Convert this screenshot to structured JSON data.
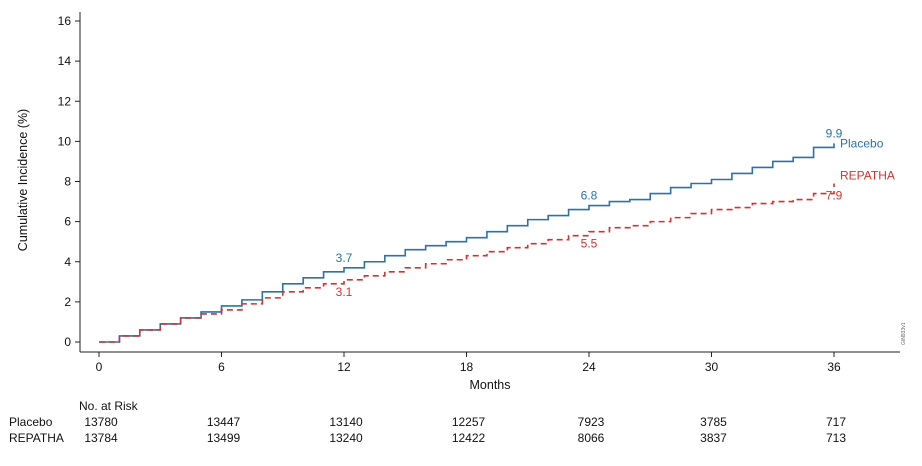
{
  "chart_data": {
    "type": "line",
    "title": "",
    "xlabel": "Months",
    "ylabel": "Cumulative Incidence (%)",
    "xlim": [
      0,
      38.5
    ],
    "ylim": [
      0,
      16
    ],
    "xticks": [
      0,
      6,
      12,
      18,
      24,
      30,
      36
    ],
    "yticks": [
      0,
      2,
      4,
      6,
      8,
      10,
      12,
      14,
      16
    ],
    "series": [
      {
        "name": "Placebo",
        "color": "#2a72a8",
        "style": "solid",
        "x": [
          0,
          1,
          2,
          3,
          4,
          5,
          6,
          7,
          8,
          9,
          10,
          11,
          12,
          13,
          14,
          15,
          16,
          17,
          18,
          19,
          20,
          21,
          22,
          23,
          24,
          25,
          26,
          27,
          28,
          29,
          30,
          31,
          32,
          33,
          34,
          35,
          36
        ],
        "values": [
          0,
          0.3,
          0.6,
          0.9,
          1.2,
          1.5,
          1.8,
          2.1,
          2.5,
          2.9,
          3.2,
          3.5,
          3.7,
          4.0,
          4.3,
          4.6,
          4.8,
          5.0,
          5.2,
          5.5,
          5.8,
          6.1,
          6.3,
          6.6,
          6.8,
          7.0,
          7.1,
          7.4,
          7.7,
          7.9,
          8.1,
          8.4,
          8.7,
          9.0,
          9.2,
          9.7,
          9.9
        ]
      },
      {
        "name": "REPATHA",
        "color": "#d6312f",
        "style": "dashed",
        "x": [
          0,
          1,
          2,
          3,
          4,
          5,
          6,
          7,
          8,
          9,
          10,
          11,
          12,
          13,
          14,
          15,
          16,
          17,
          18,
          19,
          20,
          21,
          22,
          23,
          24,
          25,
          26,
          27,
          28,
          29,
          30,
          31,
          32,
          33,
          34,
          35,
          36
        ],
        "values": [
          0,
          0.3,
          0.6,
          0.9,
          1.2,
          1.4,
          1.6,
          1.9,
          2.2,
          2.5,
          2.7,
          2.9,
          3.1,
          3.3,
          3.5,
          3.7,
          3.9,
          4.1,
          4.3,
          4.5,
          4.7,
          4.9,
          5.1,
          5.3,
          5.5,
          5.7,
          5.8,
          6.0,
          6.2,
          6.4,
          6.6,
          6.7,
          6.9,
          7.0,
          7.1,
          7.4,
          7.9
        ]
      }
    ],
    "annotations": [
      {
        "series": 0,
        "x": 12,
        "y": 3.7,
        "text": "3.7",
        "pos": "above"
      },
      {
        "series": 0,
        "x": 24,
        "y": 6.8,
        "text": "6.8",
        "pos": "above"
      },
      {
        "series": 0,
        "x": 36,
        "y": 9.9,
        "text": "9.9",
        "pos": "above"
      },
      {
        "series": 1,
        "x": 12,
        "y": 3.1,
        "text": "3.1",
        "pos": "below"
      },
      {
        "series": 1,
        "x": 24,
        "y": 5.5,
        "text": "5.5",
        "pos": "below"
      },
      {
        "series": 1,
        "x": 36,
        "y": 7.9,
        "text": "7.9",
        "pos": "below"
      }
    ],
    "line_labels": [
      {
        "series": 0,
        "text": "Placebo",
        "at_y": 9.9
      },
      {
        "series": 1,
        "text": "REPATHA",
        "at_y": 8.3
      }
    ]
  },
  "risk_table": {
    "title": "No. at Risk",
    "rows": [
      {
        "label": "Placebo",
        "values": [
          "13780",
          "13447",
          "13140",
          "12257",
          "7923",
          "3785",
          "717"
        ]
      },
      {
        "label": "REPATHA",
        "values": [
          "13784",
          "13499",
          "13240",
          "12422",
          "8066",
          "3837",
          "713"
        ]
      }
    ]
  },
  "watermark": "GIN933v1"
}
